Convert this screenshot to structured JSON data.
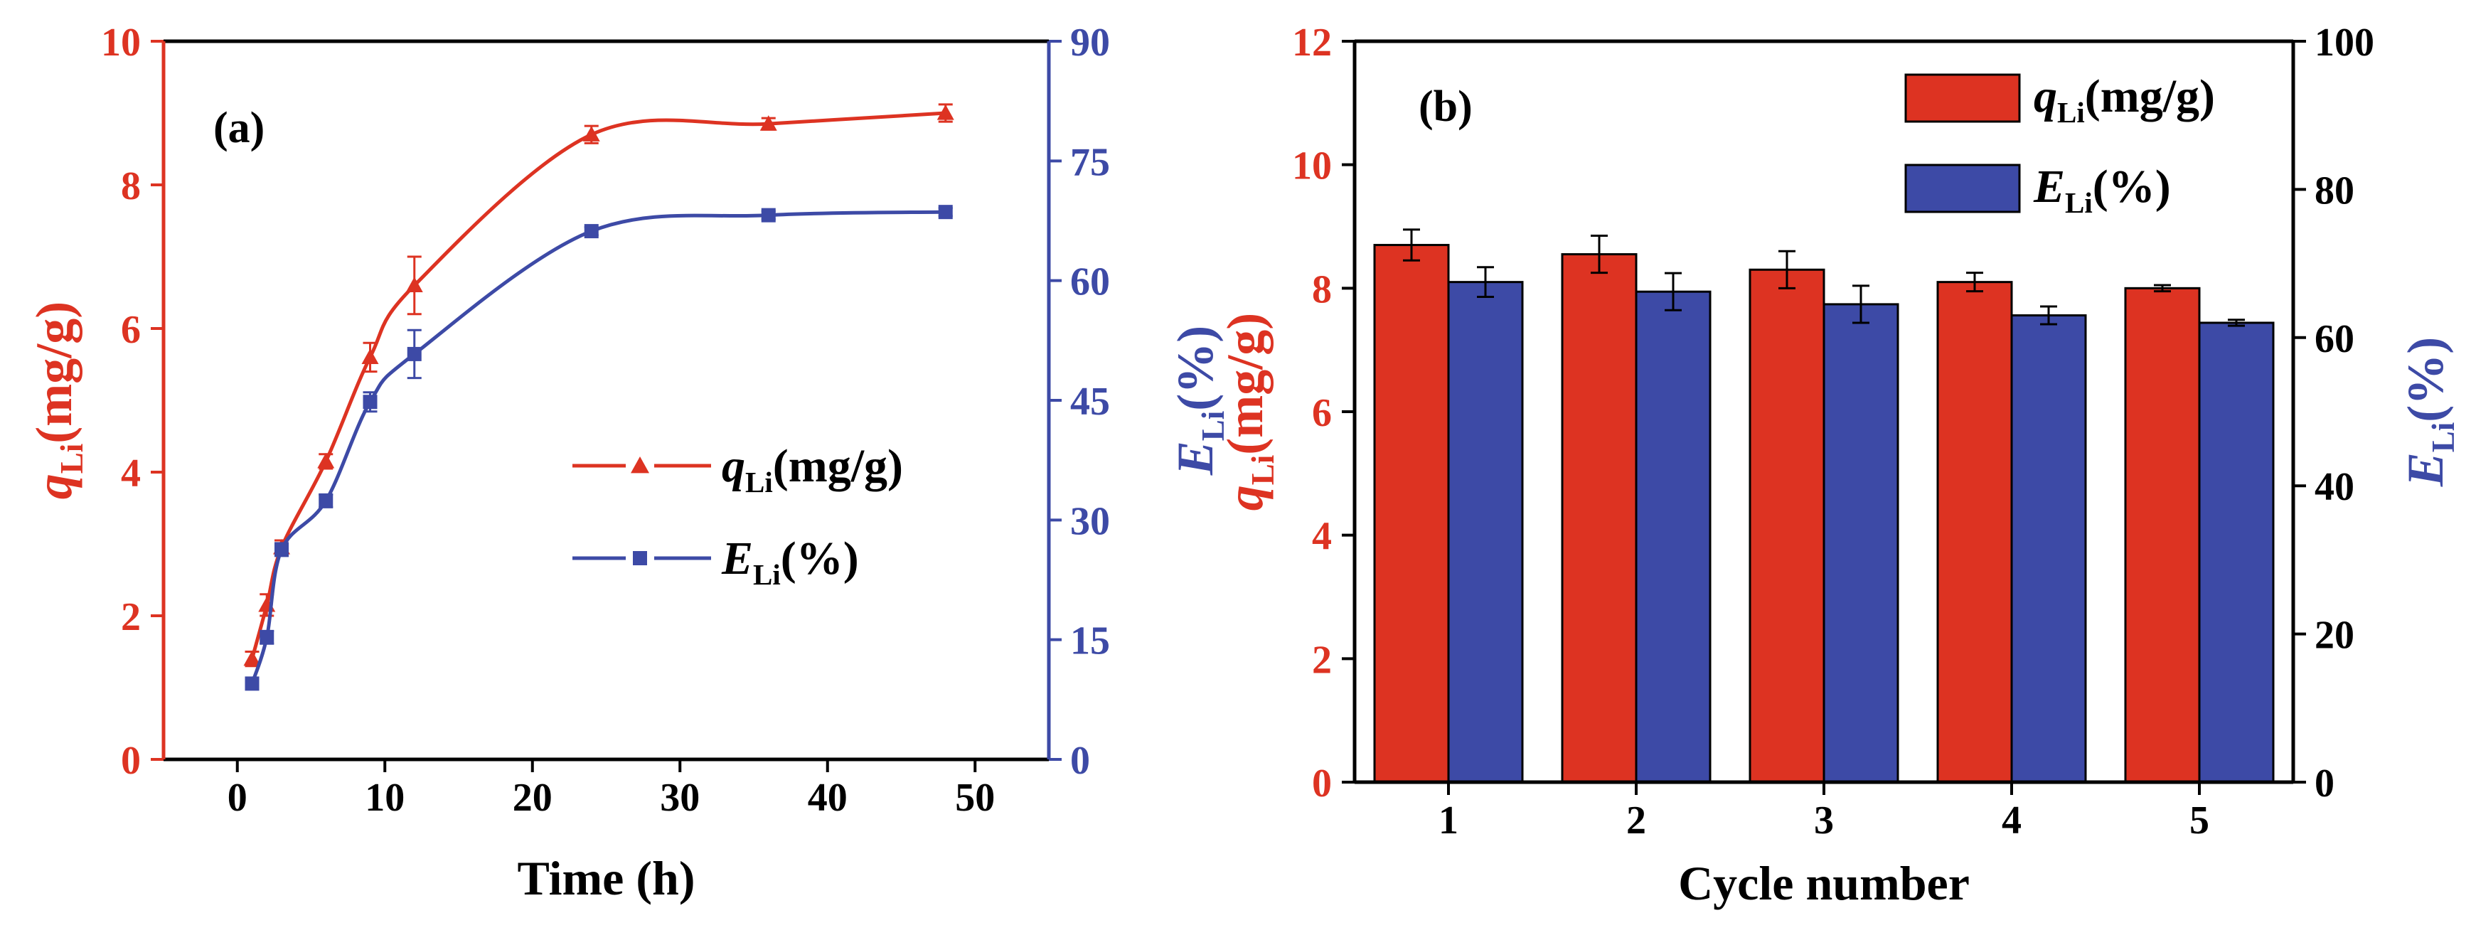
{
  "colors": {
    "red": "#dd3322",
    "blue": "#3d4aa6",
    "black": "#000000"
  },
  "chart_data": [
    {
      "id": "a",
      "type": "line",
      "panel_label": "(a)",
      "xlabel": "Time (h)",
      "xlim": [
        -5,
        55
      ],
      "xticks": [
        0,
        10,
        20,
        30,
        40,
        50
      ],
      "ylabel_left": {
        "symbol": "q",
        "sub": "Li",
        "rest": "(mg/g)"
      },
      "ylabel_right": {
        "symbol": "E",
        "sub": "Li",
        "rest": "(%)"
      },
      "ylim_left": [
        0,
        10
      ],
      "yticks_left": [
        0,
        2,
        4,
        6,
        8,
        10
      ],
      "ylim_right": [
        0,
        90
      ],
      "yticks_right": [
        0,
        15,
        30,
        45,
        60,
        75,
        90
      ],
      "legend_position": "center-right",
      "series": [
        {
          "name": "q_Li(mg/g)",
          "legend": {
            "symbol": "q",
            "sub": "Li",
            "rest": "(mg/g)"
          },
          "axis": "left",
          "marker": "triangle",
          "color": "#dd3322",
          "x": [
            1,
            2,
            3,
            6,
            9,
            12,
            24,
            36,
            48
          ],
          "y": [
            1.4,
            2.15,
            2.95,
            4.15,
            5.6,
            6.6,
            8.7,
            8.85,
            9.0
          ],
          "err": [
            0.1,
            0.15,
            0.1,
            0.1,
            0.2,
            0.4,
            0.12,
            0.08,
            0.12
          ]
        },
        {
          "name": "E_Li(%)",
          "legend": {
            "symbol": "E",
            "sub": "Li",
            "rest": "(%)"
          },
          "axis": "right",
          "marker": "square",
          "color": "#3d4aa6",
          "x": [
            1,
            2,
            3,
            6,
            9,
            12,
            24,
            36,
            48
          ],
          "y": [
            9.5,
            15.3,
            26.3,
            32.4,
            44.8,
            50.8,
            66.2,
            68.2,
            68.6
          ],
          "err": [
            0.5,
            0.8,
            0.8,
            0.8,
            1.2,
            3.0,
            0.5,
            0.5,
            0.5
          ]
        }
      ]
    },
    {
      "id": "b",
      "type": "bar",
      "panel_label": "(b)",
      "xlabel": "Cycle number",
      "categories": [
        "1",
        "2",
        "3",
        "4",
        "5"
      ],
      "ylabel_left": {
        "symbol": "q",
        "sub": "Li",
        "rest": "(mg/g)"
      },
      "ylabel_right": {
        "symbol": "E",
        "sub": "Li",
        "rest": "(%)"
      },
      "ylim_left": [
        0,
        12
      ],
      "yticks_left": [
        0,
        2,
        4,
        6,
        8,
        10,
        12
      ],
      "ylim_right": [
        0,
        100
      ],
      "yticks_right": [
        0,
        20,
        40,
        60,
        80,
        100
      ],
      "legend_position": "top-right",
      "series": [
        {
          "name": "q_Li(mg/g)",
          "legend": {
            "symbol": "q",
            "sub": "Li",
            "rest": "(mg/g)"
          },
          "axis": "left",
          "color": "#dd3322",
          "values": [
            8.7,
            8.55,
            8.3,
            8.1,
            8.0
          ],
          "err": [
            0.25,
            0.3,
            0.3,
            0.15,
            0.05
          ]
        },
        {
          "name": "E_Li(%)",
          "legend": {
            "symbol": "E",
            "sub": "Li",
            "rest": "(%)"
          },
          "axis": "right",
          "color": "#3d4aa6",
          "values": [
            67.5,
            66.2,
            64.5,
            63.0,
            62.0
          ],
          "err": [
            2.0,
            2.5,
            2.5,
            1.2,
            0.4
          ]
        }
      ]
    }
  ]
}
